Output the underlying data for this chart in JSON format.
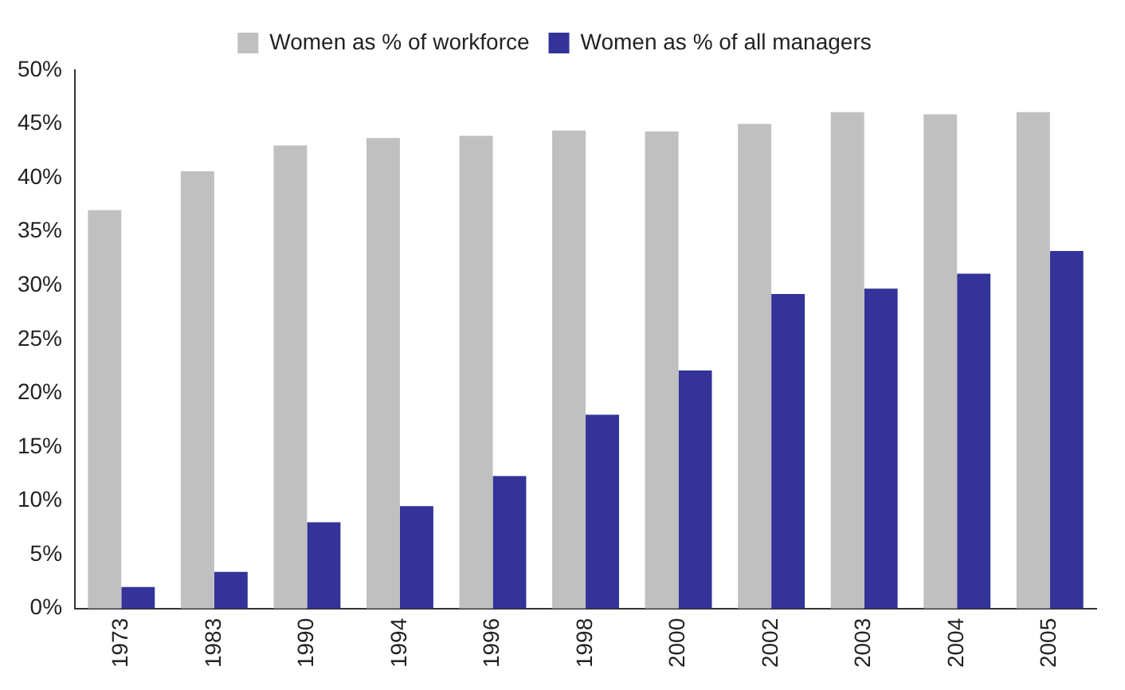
{
  "chart_data": {
    "type": "bar",
    "categories": [
      "1973",
      "1983",
      "1990",
      "1994",
      "1996",
      "1998",
      "2000",
      "2002",
      "2003",
      "2004",
      "2005"
    ],
    "series": [
      {
        "name": "Women as % of workforce",
        "color": "#c0c0c0",
        "values": [
          37.0,
          40.6,
          43.0,
          43.7,
          43.9,
          44.4,
          44.3,
          45.0,
          46.1,
          45.9,
          46.1
        ]
      },
      {
        "name": "Women as % of all managers",
        "color": "#333399",
        "values": [
          2.0,
          3.4,
          8.0,
          9.5,
          12.3,
          18.0,
          22.1,
          29.2,
          29.7,
          31.1,
          33.2
        ]
      }
    ],
    "ylim": [
      0,
      50
    ],
    "yticks": [
      {
        "value": 0,
        "label": "0%"
      },
      {
        "value": 5,
        "label": "5%"
      },
      {
        "value": 10,
        "label": "10%"
      },
      {
        "value": 15,
        "label": "15%"
      },
      {
        "value": 20,
        "label": "20%"
      },
      {
        "value": 25,
        "label": "25%"
      },
      {
        "value": 30,
        "label": "30%"
      },
      {
        "value": 35,
        "label": "35%"
      },
      {
        "value": 40,
        "label": "40%"
      },
      {
        "value": 45,
        "label": "45%"
      },
      {
        "value": 50,
        "label": "50%"
      }
    ],
    "grid": false,
    "legend": "top"
  }
}
